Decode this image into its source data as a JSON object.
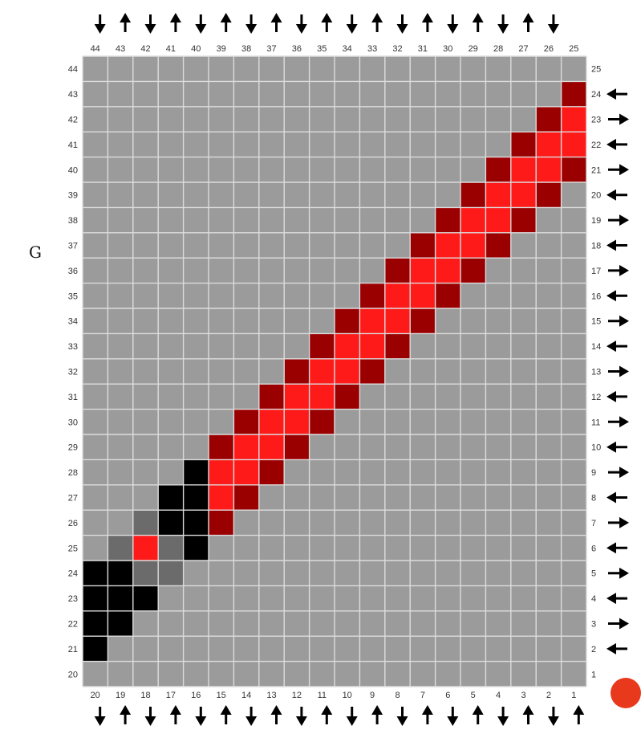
{
  "side_label": "G",
  "colors": {
    "grid_bg": "#9b9b9b",
    "grid_line": "#dcdcdc",
    "bright_red": "#ff1a1a",
    "dark_red": "#9b0000",
    "black": "#000000",
    "dark_grey": "#6b6b6b",
    "label": "#333333",
    "arrow": "#000000",
    "dot": "#e8391d"
  },
  "grid": {
    "top_labels": [
      "44",
      "43",
      "42",
      "41",
      "40",
      "39",
      "38",
      "37",
      "36",
      "35",
      "34",
      "33",
      "32",
      "31",
      "30",
      "29",
      "28",
      "27",
      "26",
      "25"
    ],
    "bottom_labels": [
      "20",
      "19",
      "18",
      "17",
      "16",
      "15",
      "14",
      "13",
      "12",
      "11",
      "10",
      "9",
      "8",
      "7",
      "6",
      "5",
      "4",
      "3",
      "2",
      "1"
    ],
    "left_labels": [
      "44",
      "43",
      "42",
      "41",
      "40",
      "39",
      "38",
      "37",
      "36",
      "35",
      "34",
      "33",
      "32",
      "31",
      "30",
      "29",
      "28",
      "27",
      "26",
      "25",
      "24",
      "23",
      "22",
      "21",
      "20"
    ],
    "right_labels": [
      "25",
      "24",
      "23",
      "22",
      "21",
      "20",
      "19",
      "18",
      "17",
      "16",
      "15",
      "14",
      "13",
      "12",
      "11",
      "10",
      "9",
      "8",
      "7",
      "6",
      "5",
      "4",
      "3",
      "2",
      "1"
    ],
    "cells": [
      {
        "row": 1,
        "col": 19,
        "color": "dark_red"
      },
      {
        "row": 2,
        "col": 18,
        "color": "dark_red"
      },
      {
        "row": 2,
        "col": 19,
        "color": "bright_red"
      },
      {
        "row": 3,
        "col": 17,
        "color": "dark_red"
      },
      {
        "row": 3,
        "col": 18,
        "color": "bright_red"
      },
      {
        "row": 3,
        "col": 19,
        "color": "bright_red"
      },
      {
        "row": 4,
        "col": 16,
        "color": "dark_red"
      },
      {
        "row": 4,
        "col": 17,
        "color": "bright_red"
      },
      {
        "row": 4,
        "col": 18,
        "color": "bright_red"
      },
      {
        "row": 4,
        "col": 19,
        "color": "dark_red"
      },
      {
        "row": 5,
        "col": 15,
        "color": "dark_red"
      },
      {
        "row": 5,
        "col": 16,
        "color": "bright_red"
      },
      {
        "row": 5,
        "col": 17,
        "color": "bright_red"
      },
      {
        "row": 5,
        "col": 18,
        "color": "dark_red"
      },
      {
        "row": 6,
        "col": 14,
        "color": "dark_red"
      },
      {
        "row": 6,
        "col": 15,
        "color": "bright_red"
      },
      {
        "row": 6,
        "col": 16,
        "color": "bright_red"
      },
      {
        "row": 6,
        "col": 17,
        "color": "dark_red"
      },
      {
        "row": 7,
        "col": 13,
        "color": "dark_red"
      },
      {
        "row": 7,
        "col": 14,
        "color": "bright_red"
      },
      {
        "row": 7,
        "col": 15,
        "color": "bright_red"
      },
      {
        "row": 7,
        "col": 16,
        "color": "dark_red"
      },
      {
        "row": 8,
        "col": 12,
        "color": "dark_red"
      },
      {
        "row": 8,
        "col": 13,
        "color": "bright_red"
      },
      {
        "row": 8,
        "col": 14,
        "color": "bright_red"
      },
      {
        "row": 8,
        "col": 15,
        "color": "dark_red"
      },
      {
        "row": 9,
        "col": 11,
        "color": "dark_red"
      },
      {
        "row": 9,
        "col": 12,
        "color": "bright_red"
      },
      {
        "row": 9,
        "col": 13,
        "color": "bright_red"
      },
      {
        "row": 9,
        "col": 14,
        "color": "dark_red"
      },
      {
        "row": 10,
        "col": 10,
        "color": "dark_red"
      },
      {
        "row": 10,
        "col": 11,
        "color": "bright_red"
      },
      {
        "row": 10,
        "col": 12,
        "color": "bright_red"
      },
      {
        "row": 10,
        "col": 13,
        "color": "dark_red"
      },
      {
        "row": 11,
        "col": 9,
        "color": "dark_red"
      },
      {
        "row": 11,
        "col": 10,
        "color": "bright_red"
      },
      {
        "row": 11,
        "col": 11,
        "color": "bright_red"
      },
      {
        "row": 11,
        "col": 12,
        "color": "dark_red"
      },
      {
        "row": 12,
        "col": 8,
        "color": "dark_red"
      },
      {
        "row": 12,
        "col": 9,
        "color": "bright_red"
      },
      {
        "row": 12,
        "col": 10,
        "color": "bright_red"
      },
      {
        "row": 12,
        "col": 11,
        "color": "dark_red"
      },
      {
        "row": 13,
        "col": 7,
        "color": "dark_red"
      },
      {
        "row": 13,
        "col": 8,
        "color": "bright_red"
      },
      {
        "row": 13,
        "col": 9,
        "color": "bright_red"
      },
      {
        "row": 13,
        "col": 10,
        "color": "dark_red"
      },
      {
        "row": 14,
        "col": 6,
        "color": "dark_red"
      },
      {
        "row": 14,
        "col": 7,
        "color": "bright_red"
      },
      {
        "row": 14,
        "col": 8,
        "color": "bright_red"
      },
      {
        "row": 14,
        "col": 9,
        "color": "dark_red"
      },
      {
        "row": 15,
        "col": 5,
        "color": "dark_red"
      },
      {
        "row": 15,
        "col": 6,
        "color": "bright_red"
      },
      {
        "row": 15,
        "col": 7,
        "color": "bright_red"
      },
      {
        "row": 15,
        "col": 8,
        "color": "dark_red"
      },
      {
        "row": 16,
        "col": 4,
        "color": "black"
      },
      {
        "row": 16,
        "col": 5,
        "color": "bright_red"
      },
      {
        "row": 16,
        "col": 6,
        "color": "bright_red"
      },
      {
        "row": 16,
        "col": 7,
        "color": "dark_red"
      },
      {
        "row": 17,
        "col": 3,
        "color": "black"
      },
      {
        "row": 17,
        "col": 4,
        "color": "black"
      },
      {
        "row": 17,
        "col": 5,
        "color": "bright_red"
      },
      {
        "row": 17,
        "col": 6,
        "color": "dark_red"
      },
      {
        "row": 18,
        "col": 2,
        "color": "dark_grey"
      },
      {
        "row": 18,
        "col": 3,
        "color": "black"
      },
      {
        "row": 18,
        "col": 4,
        "color": "black"
      },
      {
        "row": 18,
        "col": 5,
        "color": "dark_red"
      },
      {
        "row": 19,
        "col": 1,
        "color": "dark_grey"
      },
      {
        "row": 19,
        "col": 2,
        "color": "bright_red"
      },
      {
        "row": 19,
        "col": 3,
        "color": "dark_grey"
      },
      {
        "row": 19,
        "col": 4,
        "color": "black"
      },
      {
        "row": 20,
        "col": 0,
        "color": "black"
      },
      {
        "row": 20,
        "col": 1,
        "color": "black"
      },
      {
        "row": 20,
        "col": 2,
        "color": "dark_grey"
      },
      {
        "row": 20,
        "col": 3,
        "color": "dark_grey"
      },
      {
        "row": 21,
        "col": 0,
        "color": "black"
      },
      {
        "row": 21,
        "col": 1,
        "color": "black"
      },
      {
        "row": 21,
        "col": 2,
        "color": "black"
      },
      {
        "row": 22,
        "col": 0,
        "color": "black"
      },
      {
        "row": 22,
        "col": 1,
        "color": "black"
      },
      {
        "row": 23,
        "col": 0,
        "color": "black"
      }
    ]
  },
  "arrows": {
    "top": [
      "down",
      "up",
      "down",
      "up",
      "down",
      "up",
      "down",
      "up",
      "down",
      "up",
      "down",
      "up",
      "down",
      "up",
      "down",
      "up",
      "down",
      "up",
      "down"
    ],
    "bottom": [
      "down",
      "up",
      "down",
      "up",
      "down",
      "up",
      "down",
      "up",
      "down",
      "up",
      "down",
      "up",
      "down",
      "up",
      "down",
      "up",
      "down",
      "up",
      "down",
      "up"
    ],
    "right": [
      "left",
      "right",
      "left",
      "right",
      "left",
      "right",
      "left",
      "right",
      "left",
      "right",
      "left",
      "right",
      "left",
      "right",
      "left",
      "right",
      "left",
      "right",
      "left",
      "right",
      "left",
      "right",
      "left"
    ]
  }
}
